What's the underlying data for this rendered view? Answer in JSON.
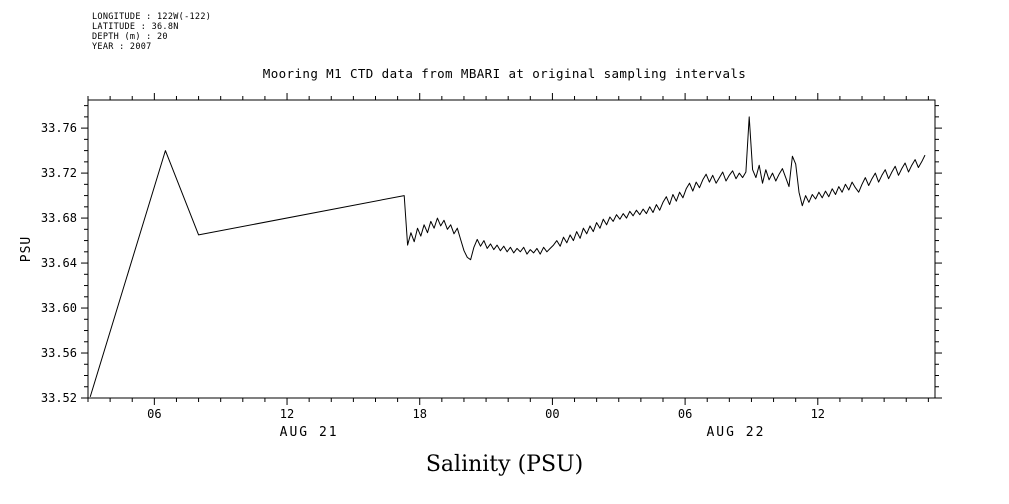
{
  "header": {
    "metadata_lines": [
      "LONGITUDE : 122W(-122)",
      "LATITUDE : 36.8N",
      "DEPTH (m) : 20",
      "YEAR : 2007"
    ]
  },
  "title": "Mooring M1 CTD data from MBARI at original sampling intervals",
  "bottom_label": "Salinity (PSU)",
  "chart_data": {
    "type": "line",
    "title": "Mooring M1 CTD data from MBARI at original sampling intervals",
    "xlabel": "Salinity (PSU)",
    "ylabel": "PSU",
    "xlim": [
      3.0,
      41.3
    ],
    "ylim": [
      33.52,
      33.785
    ],
    "grid": false,
    "legend": "none",
    "x_units": "hours from 2007-08-21 00:00",
    "y_major_ticks": [
      33.52,
      33.56,
      33.6,
      33.64,
      33.68,
      33.72,
      33.76
    ],
    "y_minor_step": 0.01,
    "x_major_ticks": [
      {
        "hour": 6,
        "label": "06"
      },
      {
        "hour": 12,
        "label": "12"
      },
      {
        "hour": 18,
        "label": "18"
      },
      {
        "hour": 24,
        "label": "00"
      },
      {
        "hour": 30,
        "label": "06"
      },
      {
        "hour": 36,
        "label": "12"
      }
    ],
    "x_minor_step": 1,
    "day_labels": [
      {
        "hour": 13.0,
        "label": "AUG 21"
      },
      {
        "hour": 32.3,
        "label": "AUG 22"
      }
    ],
    "series": [
      {
        "name": "salinity",
        "points": [
          [
            3.1,
            33.521
          ],
          [
            6.5,
            33.74
          ],
          [
            8.0,
            33.665
          ],
          [
            17.3,
            33.7
          ],
          [
            17.45,
            33.656
          ],
          [
            17.6,
            33.667
          ],
          [
            17.75,
            33.659
          ],
          [
            17.9,
            33.671
          ],
          [
            18.05,
            33.664
          ],
          [
            18.2,
            33.674
          ],
          [
            18.35,
            33.667
          ],
          [
            18.5,
            33.677
          ],
          [
            18.65,
            33.671
          ],
          [
            18.8,
            33.68
          ],
          [
            18.95,
            33.673
          ],
          [
            19.1,
            33.678
          ],
          [
            19.25,
            33.67
          ],
          [
            19.4,
            33.674
          ],
          [
            19.55,
            33.666
          ],
          [
            19.7,
            33.671
          ],
          [
            19.85,
            33.661
          ],
          [
            20.0,
            33.651
          ],
          [
            20.15,
            33.645
          ],
          [
            20.3,
            33.643
          ],
          [
            20.45,
            33.654
          ],
          [
            20.6,
            33.661
          ],
          [
            20.75,
            33.655
          ],
          [
            20.9,
            33.66
          ],
          [
            21.05,
            33.653
          ],
          [
            21.2,
            33.657
          ],
          [
            21.35,
            33.652
          ],
          [
            21.5,
            33.656
          ],
          [
            21.65,
            33.651
          ],
          [
            21.8,
            33.655
          ],
          [
            21.95,
            33.65
          ],
          [
            22.1,
            33.654
          ],
          [
            22.25,
            33.649
          ],
          [
            22.4,
            33.653
          ],
          [
            22.55,
            33.65
          ],
          [
            22.7,
            33.654
          ],
          [
            22.85,
            33.648
          ],
          [
            23.0,
            33.652
          ],
          [
            23.15,
            33.649
          ],
          [
            23.3,
            33.653
          ],
          [
            23.45,
            33.648
          ],
          [
            23.6,
            33.654
          ],
          [
            23.75,
            33.65
          ],
          [
            23.9,
            33.653
          ],
          [
            24.05,
            33.656
          ],
          [
            24.2,
            33.66
          ],
          [
            24.35,
            33.655
          ],
          [
            24.5,
            33.663
          ],
          [
            24.65,
            33.658
          ],
          [
            24.8,
            33.665
          ],
          [
            24.95,
            33.66
          ],
          [
            25.1,
            33.668
          ],
          [
            25.25,
            33.662
          ],
          [
            25.4,
            33.671
          ],
          [
            25.55,
            33.666
          ],
          [
            25.7,
            33.673
          ],
          [
            25.85,
            33.668
          ],
          [
            26.0,
            33.676
          ],
          [
            26.15,
            33.671
          ],
          [
            26.3,
            33.679
          ],
          [
            26.45,
            33.674
          ],
          [
            26.6,
            33.681
          ],
          [
            26.75,
            33.677
          ],
          [
            26.9,
            33.683
          ],
          [
            27.05,
            33.679
          ],
          [
            27.2,
            33.684
          ],
          [
            27.35,
            33.68
          ],
          [
            27.5,
            33.686
          ],
          [
            27.65,
            33.682
          ],
          [
            27.8,
            33.687
          ],
          [
            27.95,
            33.683
          ],
          [
            28.1,
            33.688
          ],
          [
            28.25,
            33.684
          ],
          [
            28.4,
            33.69
          ],
          [
            28.55,
            33.685
          ],
          [
            28.7,
            33.692
          ],
          [
            28.85,
            33.687
          ],
          [
            29.0,
            33.694
          ],
          [
            29.15,
            33.699
          ],
          [
            29.3,
            33.692
          ],
          [
            29.45,
            33.701
          ],
          [
            29.6,
            33.695
          ],
          [
            29.75,
            33.703
          ],
          [
            29.9,
            33.698
          ],
          [
            30.05,
            33.706
          ],
          [
            30.2,
            33.711
          ],
          [
            30.35,
            33.704
          ],
          [
            30.5,
            33.712
          ],
          [
            30.65,
            33.707
          ],
          [
            30.8,
            33.714
          ],
          [
            30.95,
            33.719
          ],
          [
            31.1,
            33.712
          ],
          [
            31.25,
            33.718
          ],
          [
            31.4,
            33.711
          ],
          [
            31.55,
            33.716
          ],
          [
            31.7,
            33.721
          ],
          [
            31.85,
            33.713
          ],
          [
            32.0,
            33.718
          ],
          [
            32.15,
            33.722
          ],
          [
            32.3,
            33.715
          ],
          [
            32.45,
            33.72
          ],
          [
            32.6,
            33.716
          ],
          [
            32.75,
            33.721
          ],
          [
            32.9,
            33.77
          ],
          [
            33.05,
            33.723
          ],
          [
            33.2,
            33.716
          ],
          [
            33.35,
            33.727
          ],
          [
            33.5,
            33.711
          ],
          [
            33.65,
            33.723
          ],
          [
            33.8,
            33.714
          ],
          [
            33.95,
            33.72
          ],
          [
            34.1,
            33.713
          ],
          [
            34.25,
            33.719
          ],
          [
            34.4,
            33.724
          ],
          [
            34.55,
            33.716
          ],
          [
            34.7,
            33.708
          ],
          [
            34.85,
            33.735
          ],
          [
            35.0,
            33.728
          ],
          [
            35.15,
            33.703
          ],
          [
            35.3,
            33.691
          ],
          [
            35.45,
            33.7
          ],
          [
            35.6,
            33.694
          ],
          [
            35.75,
            33.701
          ],
          [
            35.9,
            33.697
          ],
          [
            36.05,
            33.703
          ],
          [
            36.2,
            33.698
          ],
          [
            36.35,
            33.704
          ],
          [
            36.5,
            33.699
          ],
          [
            36.65,
            33.706
          ],
          [
            36.8,
            33.701
          ],
          [
            36.95,
            33.708
          ],
          [
            37.1,
            33.703
          ],
          [
            37.25,
            33.71
          ],
          [
            37.4,
            33.705
          ],
          [
            37.55,
            33.712
          ],
          [
            37.7,
            33.707
          ],
          [
            37.85,
            33.703
          ],
          [
            38.0,
            33.71
          ],
          [
            38.15,
            33.716
          ],
          [
            38.3,
            33.709
          ],
          [
            38.45,
            33.715
          ],
          [
            38.6,
            33.72
          ],
          [
            38.75,
            33.712
          ],
          [
            38.9,
            33.718
          ],
          [
            39.05,
            33.723
          ],
          [
            39.2,
            33.715
          ],
          [
            39.35,
            33.721
          ],
          [
            39.5,
            33.726
          ],
          [
            39.65,
            33.718
          ],
          [
            39.8,
            33.724
          ],
          [
            39.95,
            33.729
          ],
          [
            40.1,
            33.721
          ],
          [
            40.25,
            33.727
          ],
          [
            40.4,
            33.732
          ],
          [
            40.55,
            33.725
          ],
          [
            40.7,
            33.73
          ],
          [
            40.85,
            33.736
          ]
        ]
      }
    ]
  }
}
